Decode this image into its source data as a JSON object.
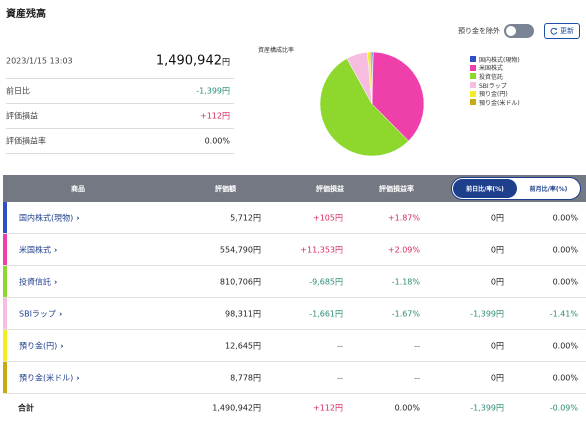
{
  "page_title": "資産残高",
  "toggle": {
    "label": "預り金を除外"
  },
  "refresh": {
    "label": "更新",
    "icon": "refresh-icon"
  },
  "summary": {
    "datetime": "2023/1/15 13:03",
    "total": "1,490,942",
    "yen": "円",
    "rows": [
      {
        "label": "前日比",
        "value": "-1,399円"
      },
      {
        "label": "評価損益",
        "value": "+112円"
      },
      {
        "label": "評価損益率",
        "value": "0.00%"
      }
    ]
  },
  "chart_data": {
    "type": "pie",
    "title": "資産構成比率",
    "legend_position": "right",
    "slices": [
      {
        "label": "国内株式(現物)",
        "value": 5712,
        "color": "#2f4fc9"
      },
      {
        "label": "米国株式",
        "value": 554790,
        "color": "#ee3fab"
      },
      {
        "label": "投資信託",
        "value": 810706,
        "color": "#8ed82e"
      },
      {
        "label": "SBIラップ",
        "value": 98311,
        "color": "#f7bde1"
      },
      {
        "label": "預り金(円)",
        "value": 12645,
        "color": "#f3ec23"
      },
      {
        "label": "預り金(米ドル)",
        "value": 8778,
        "color": "#c9aa12"
      }
    ]
  },
  "table": {
    "headers": [
      "商品",
      "評価額",
      "評価損益",
      "評価損益率"
    ],
    "toggle_active": "前日比/率(%)",
    "toggle_inactive": "前月比/率(%)",
    "rows": [
      {
        "name": "国内株式(現物)",
        "value": "5,712円",
        "pl": "+105円",
        "pl_rate": "+1.87%",
        "diff": "0円",
        "diff_rate": "0.00%",
        "color": "#2f4fc9"
      },
      {
        "name": "米国株式",
        "value": "554,790円",
        "pl": "+11,353円",
        "pl_rate": "+2.09%",
        "diff": "0円",
        "diff_rate": "0.00%",
        "color": "#ee3fab"
      },
      {
        "name": "投資信託",
        "value": "810,706円",
        "pl": "-9,685円",
        "pl_rate": "-1.18%",
        "diff": "0円",
        "diff_rate": "0.00%",
        "color": "#8ed82e"
      },
      {
        "name": "SBIラップ",
        "value": "98,311円",
        "pl": "-1,661円",
        "pl_rate": "-1.67%",
        "diff": "-1,399円",
        "diff_rate": "-1.41%",
        "color": "#f7bde1"
      },
      {
        "name": "預り金(円)",
        "value": "12,645円",
        "pl": "--",
        "pl_rate": "--",
        "diff": "0円",
        "diff_rate": "0.00%",
        "color": "#f3ec23"
      },
      {
        "name": "預り金(米ドル)",
        "value": "8,778円",
        "pl": "--",
        "pl_rate": "--",
        "diff": "0円",
        "diff_rate": "0.00%",
        "color": "#c9aa12"
      }
    ],
    "total": {
      "label": "合計",
      "value": "1,490,942円",
      "pl": "+112円",
      "pl_rate": "0.00%",
      "diff": "-1,399円",
      "diff_rate": "-0.09%"
    },
    "chevron": "›"
  }
}
